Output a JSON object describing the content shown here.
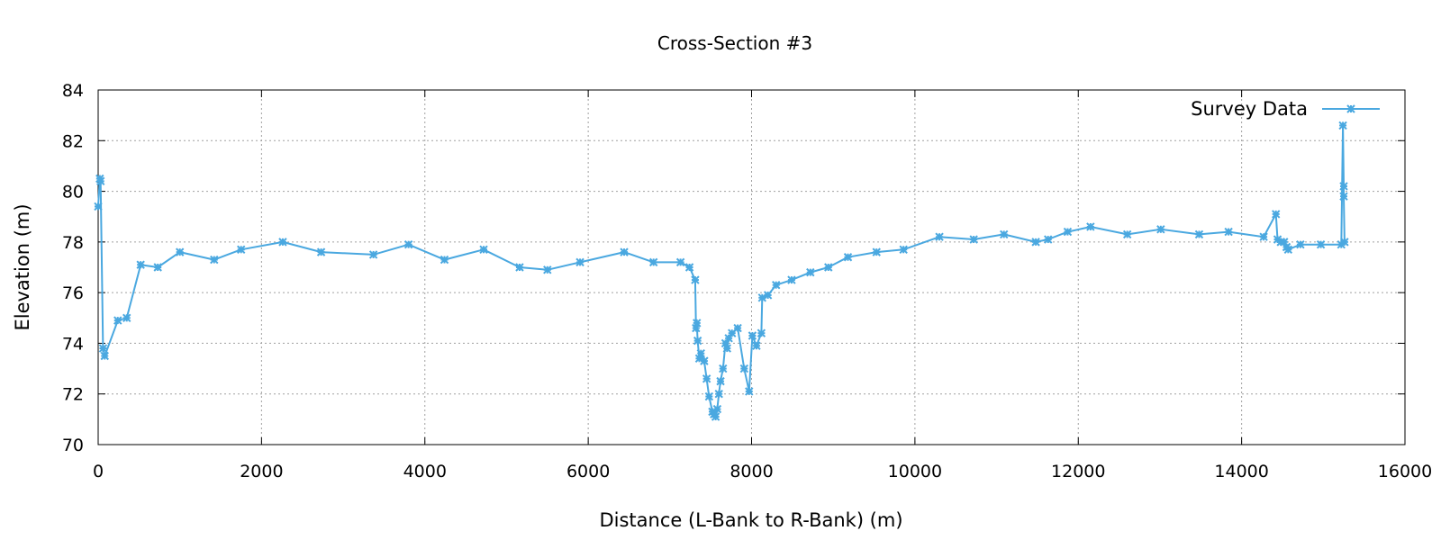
{
  "chart_data": {
    "type": "line",
    "title": "Cross-Section #3",
    "xlabel": "Distance (L-Bank to R-Bank) (m)",
    "ylabel": "Elevation (m)",
    "xlim": [
      0,
      16000
    ],
    "ylim": [
      70,
      84
    ],
    "xticks": [
      0,
      2000,
      4000,
      6000,
      8000,
      10000,
      12000,
      14000,
      16000
    ],
    "yticks": [
      70,
      72,
      74,
      76,
      78,
      80,
      82,
      84
    ],
    "grid": true,
    "legend": "top-right",
    "series": [
      {
        "name": "Survey Data",
        "color": "#4aa8e0",
        "x": [
          0,
          20,
          30,
          60,
          80,
          240,
          350,
          520,
          730,
          1000,
          1420,
          1750,
          2260,
          2730,
          3370,
          3800,
          4240,
          4720,
          5160,
          5500,
          5900,
          6440,
          6800,
          7130,
          7240,
          7310,
          7320,
          7330,
          7340,
          7360,
          7380,
          7420,
          7450,
          7480,
          7520,
          7540,
          7560,
          7580,
          7600,
          7620,
          7650,
          7680,
          7700,
          7720,
          7760,
          7830,
          7910,
          7970,
          8010,
          8060,
          8120,
          8130,
          8200,
          8300,
          8490,
          8720,
          8940,
          9180,
          9530,
          9860,
          10300,
          10720,
          11090,
          11480,
          11630,
          11870,
          12150,
          12600,
          13010,
          13480,
          13840,
          14270,
          14420,
          14440,
          14480,
          14520,
          14550,
          14570,
          14720,
          14970,
          15220,
          15240,
          15250,
          15250,
          15260
        ],
        "y": [
          79.4,
          80.5,
          80.4,
          73.8,
          73.5,
          74.9,
          75.0,
          77.1,
          77.0,
          77.6,
          77.3,
          77.7,
          78.0,
          77.6,
          77.5,
          77.9,
          77.3,
          77.7,
          77.0,
          76.9,
          77.2,
          77.6,
          77.2,
          77.2,
          77.0,
          76.5,
          74.6,
          74.8,
          74.1,
          73.4,
          73.6,
          73.3,
          72.6,
          71.9,
          71.3,
          71.2,
          71.1,
          71.4,
          72.0,
          72.5,
          73.0,
          74.0,
          73.8,
          74.2,
          74.4,
          74.6,
          73.0,
          72.1,
          74.3,
          73.9,
          74.4,
          75.8,
          75.9,
          76.3,
          76.5,
          76.8,
          77.0,
          77.4,
          77.6,
          77.7,
          78.2,
          78.1,
          78.3,
          78.0,
          78.1,
          78.4,
          78.6,
          78.3,
          78.5,
          78.3,
          78.4,
          78.2,
          79.1,
          78.1,
          78.0,
          78.0,
          77.8,
          77.7,
          77.9,
          77.9,
          77.9,
          82.6,
          80.2,
          79.8,
          78.0
        ]
      }
    ]
  }
}
